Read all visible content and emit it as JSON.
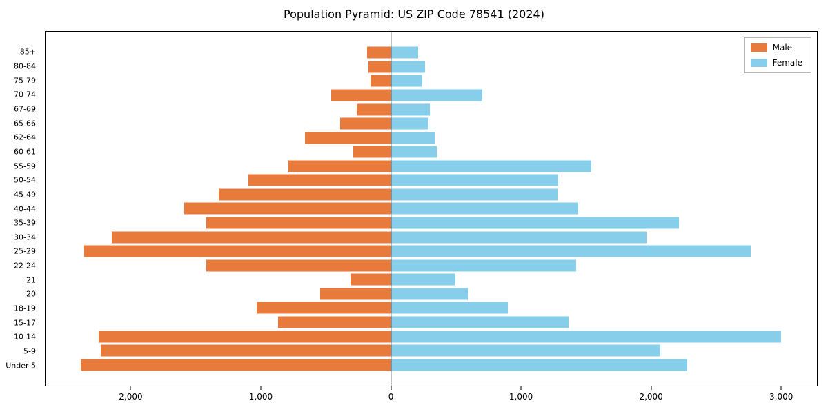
{
  "title": "Population Pyramid: US ZIP Code 78541 (2024)",
  "legend": {
    "male": "Male",
    "female": "Female"
  },
  "colors": {
    "male": "#e87a3c",
    "female": "#87ceeb",
    "axis": "#000000"
  },
  "chart_data": {
    "type": "bar",
    "subtype": "population-pyramid",
    "orientation": "horizontal",
    "title": "Population Pyramid: US ZIP Code 78541 (2024)",
    "categories": [
      "85+",
      "80-84",
      "75-79",
      "70-74",
      "67-69",
      "65-66",
      "62-64",
      "60-61",
      "55-59",
      "50-54",
      "45-49",
      "40-44",
      "35-39",
      "30-34",
      "25-29",
      "22-24",
      "21",
      "20",
      "18-19",
      "15-17",
      "10-14",
      "5-9",
      "Under 5"
    ],
    "series": [
      {
        "name": "Male",
        "side": "left",
        "values": [
          185,
          175,
          160,
          460,
          265,
          390,
          660,
          290,
          790,
          1100,
          1325,
          1590,
          1420,
          2150,
          2360,
          1420,
          310,
          545,
          1035,
          870,
          2250,
          2235,
          2390
        ]
      },
      {
        "name": "Female",
        "side": "right",
        "values": [
          210,
          260,
          240,
          705,
          300,
          290,
          335,
          355,
          1545,
          1290,
          1280,
          1440,
          2215,
          1970,
          2770,
          1425,
          495,
          590,
          900,
          1370,
          3005,
          2075,
          2280
        ]
      }
    ],
    "xlim": [
      -2660,
      3280
    ],
    "xticks": [
      -2000,
      -1000,
      0,
      1000,
      2000,
      3000
    ],
    "xtick_labels": [
      "2,000",
      "1,000",
      "0",
      "1,000",
      "2,000",
      "3,000"
    ],
    "legend_position": "upper right",
    "grid": false
  }
}
